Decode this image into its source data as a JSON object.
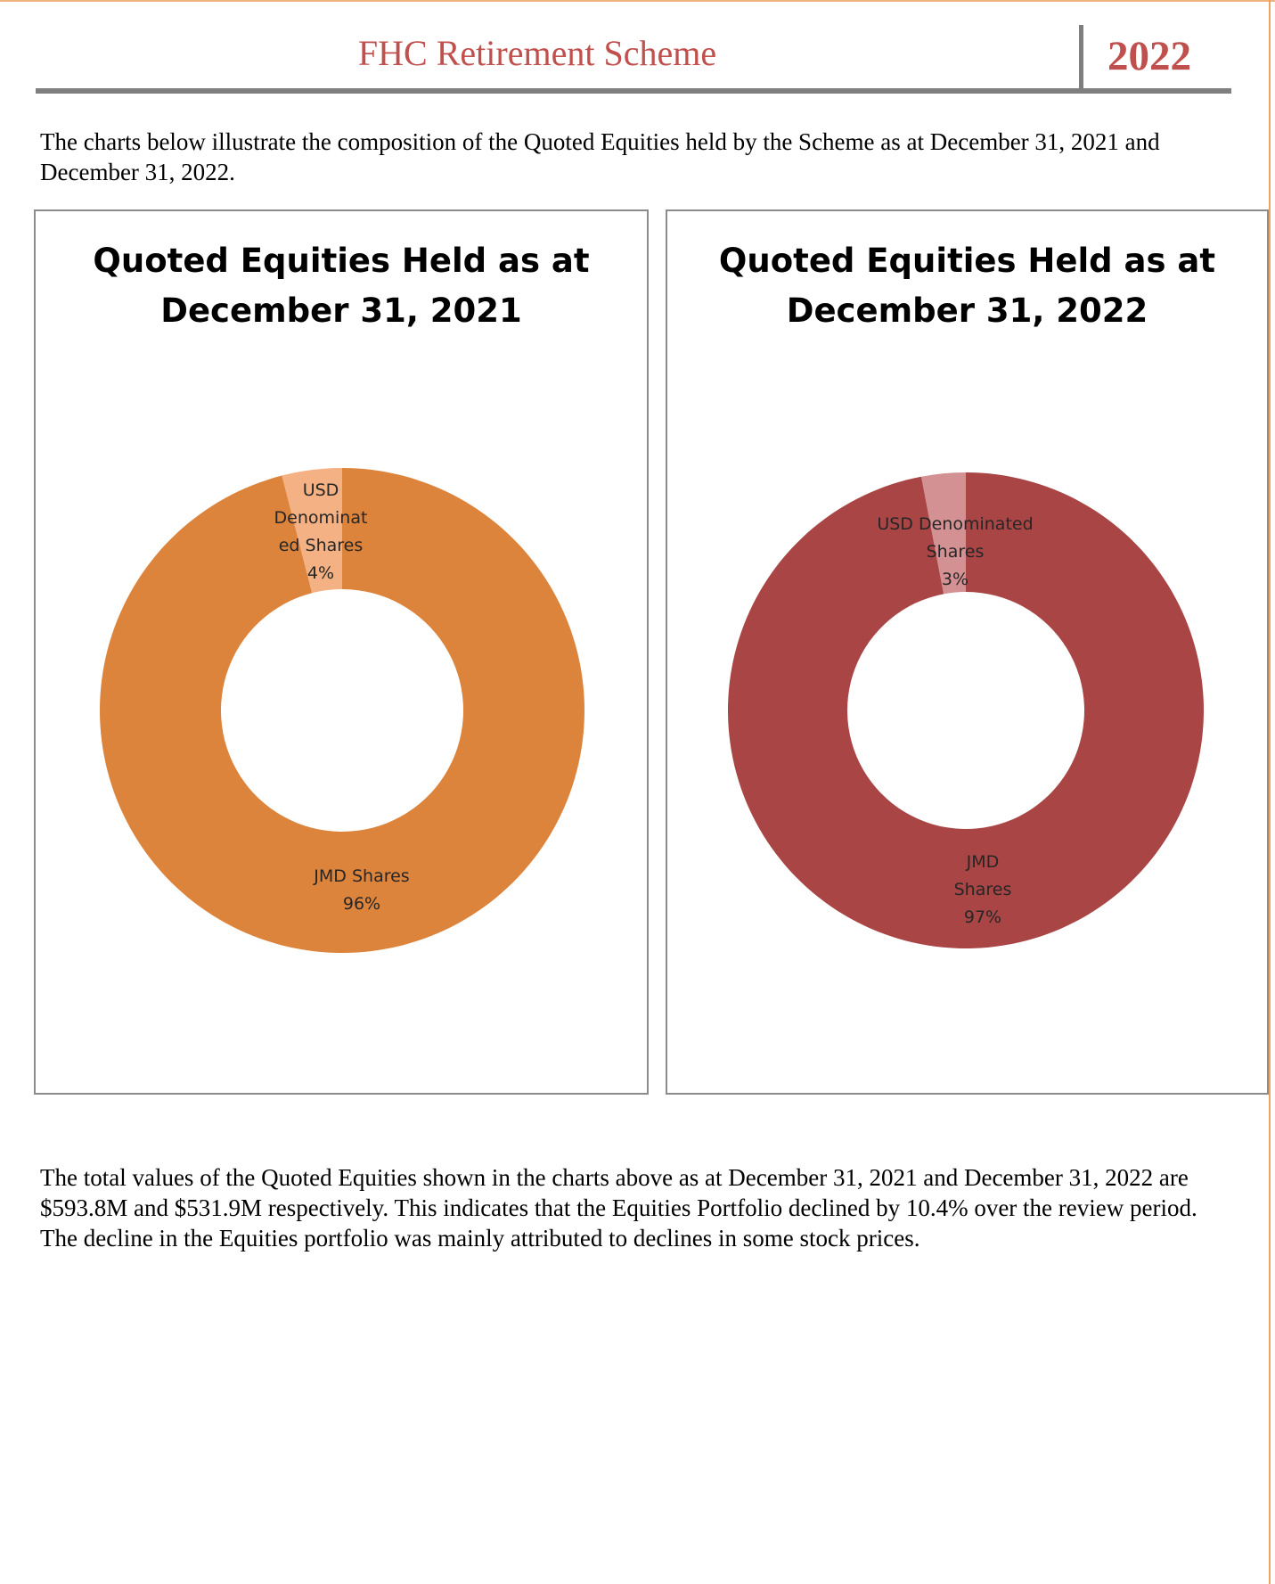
{
  "header": {
    "title": "FHC Retirement Scheme",
    "year": "2022"
  },
  "intro_text": "The charts below illustrate the composition of the Quoted Equities held by the Scheme as at December 31, 2021 and December 31, 2022.",
  "summary_text": "The total values of the Quoted Equities shown in the charts above as at December 31, 2021 and December 31, 2022 are $593.8M and $531.9M respectively. This indicates that the Equities Portfolio declined by 10.4% over the review period. The decline in the Equities portfolio was mainly attributed to declines in some stock prices.",
  "chart_data": [
    {
      "type": "pie",
      "donut": true,
      "title_lines": [
        "Quoted Equities Held as at",
        "December 31, 2021"
      ],
      "categories": [
        "USD Denominated Shares",
        "JMD Shares"
      ],
      "values": [
        4,
        96
      ],
      "colors": [
        "#f4b183",
        "#dd843c"
      ],
      "labels": [
        {
          "lines": [
            "USD",
            "Denominat",
            "ed Shares",
            "4%"
          ]
        },
        {
          "lines": [
            "JMD Shares",
            "96%"
          ]
        }
      ]
    },
    {
      "type": "pie",
      "donut": true,
      "title_lines": [
        "Quoted Equities Held as at",
        "December 31, 2022"
      ],
      "categories": [
        "USD Denominated Shares",
        "JMD Shares"
      ],
      "values": [
        3,
        97
      ],
      "colors": [
        "#d39193",
        "#a94545"
      ],
      "labels": [
        {
          "lines": [
            "USD Denominated",
            "Shares",
            "3%"
          ]
        },
        {
          "lines": [
            "JMD",
            "Shares",
            "97%"
          ]
        }
      ]
    }
  ]
}
